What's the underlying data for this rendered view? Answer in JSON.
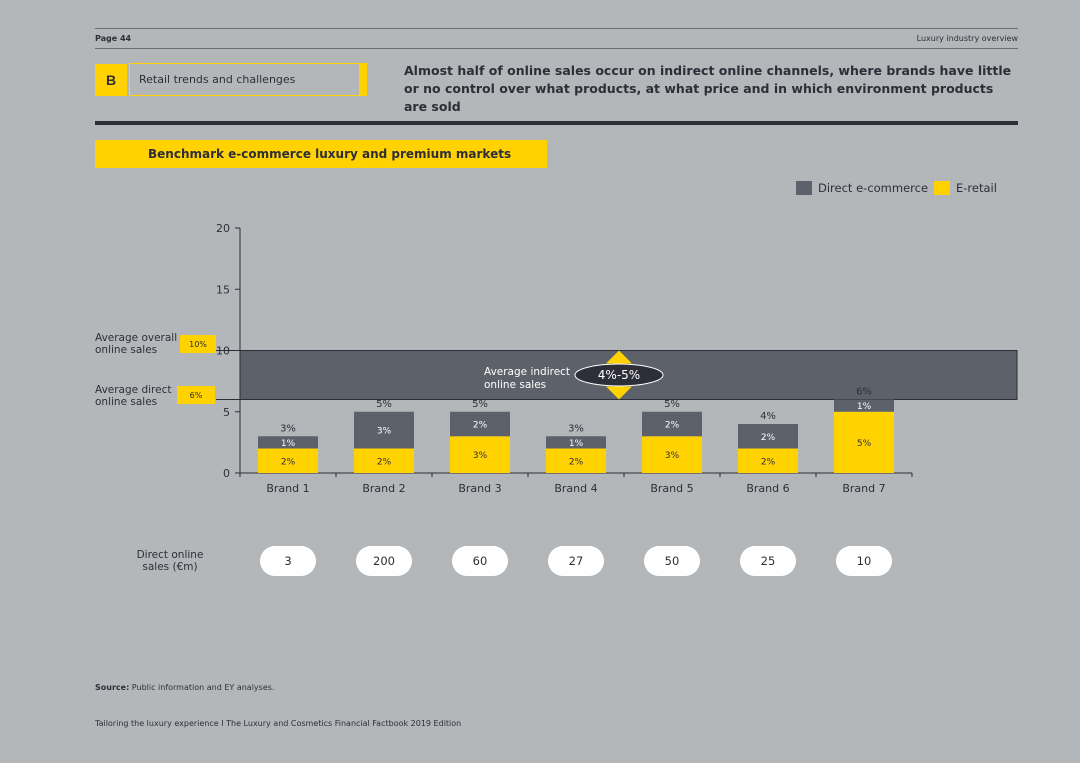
{
  "header": {
    "page_number": "Page 44",
    "right_label": "Luxury industry overview"
  },
  "section": {
    "letter": "B",
    "title": "Retail trends and challenges"
  },
  "headline": "Almost half of online sales occur on indirect online channels, where brands have little or no control over what products, at what price and in which environment products are sold",
  "chart_title": "Benchmark e-commerce luxury and premium markets",
  "colors": {
    "direct": "#5d6169",
    "eretail": "#ffd200",
    "band": "#5d6169",
    "axis": "#2e2e38"
  },
  "chart_data": {
    "type": "bar",
    "stacked": true,
    "title": "Benchmark e-commerce luxury and premium markets",
    "categories": [
      "Brand 1",
      "Brand 2",
      "Brand 3",
      "Brand 4",
      "Brand 5",
      "Brand 6",
      "Brand 7"
    ],
    "series": [
      {
        "name": "E-retail",
        "values": [
          2,
          2,
          3,
          2,
          3,
          2,
          5
        ],
        "labels": [
          "2%",
          "2%",
          "3%",
          "2%",
          "3%",
          "2%",
          "5%"
        ]
      },
      {
        "name": "Direct e-commerce",
        "values": [
          1,
          3,
          2,
          1,
          2,
          2,
          1
        ],
        "labels": [
          "1%",
          "3%",
          "2%",
          "1%",
          "2%",
          "2%",
          "1%"
        ]
      }
    ],
    "totals": [
      3,
      5,
      5,
      3,
      5,
      4,
      6
    ],
    "total_labels": [
      "3%",
      "5%",
      "5%",
      "3%",
      "5%",
      "4%",
      "6%"
    ],
    "yticks": [
      0,
      5,
      10,
      15,
      20
    ],
    "ylim": [
      0,
      20
    ],
    "legend": {
      "position": "top-right",
      "items": [
        "Direct e-commerce",
        "E-retail"
      ]
    },
    "band": {
      "from": 6,
      "to": 10,
      "label": "Average indirect online sales",
      "value_label": "4%-5%"
    },
    "reference_lines": [
      {
        "name": "Average overall online sales",
        "value": 10,
        "label": "10%"
      },
      {
        "name": "Average direct online sales",
        "value": 6,
        "label": "6%"
      }
    ],
    "direct_online_sales": {
      "label": "Direct online sales (€m)",
      "values": [
        "3",
        "200",
        "60",
        "27",
        "50",
        "25",
        "10"
      ]
    }
  },
  "side_labels": {
    "overall": "Average overall online sales",
    "overall_badge": "10%",
    "direct": "Average direct online sales",
    "direct_badge": "6%",
    "sales_row": "Direct online sales (€m)"
  },
  "source": {
    "prefix": "Source:",
    "text": " Public information and EY analyses."
  },
  "footer": "Tailoring the luxury experience I The Luxury and Cosmetics Financial Factbook 2019 Edition"
}
